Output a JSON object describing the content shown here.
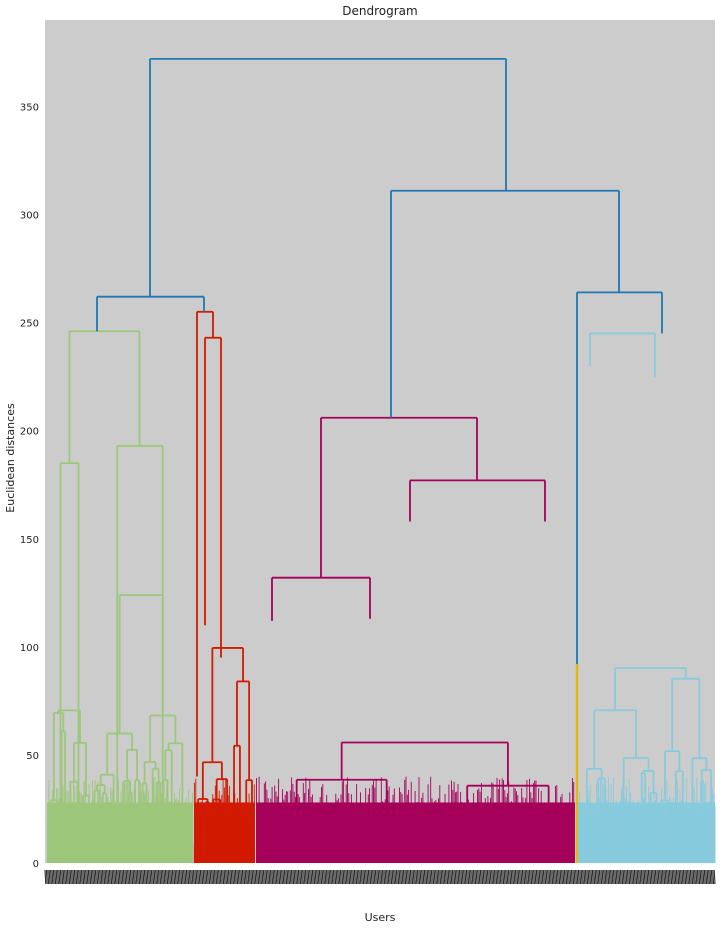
{
  "chart_data": {
    "type": "dendrogram",
    "title": "Dendrogram",
    "xlabel": "Users",
    "ylabel": "Euclidean distances",
    "ylim": [
      0,
      390
    ],
    "yticks": [
      0,
      50,
      100,
      150,
      200,
      250,
      300,
      350
    ],
    "grid": false,
    "background": "#cccccc",
    "colors": {
      "root": "#1f77b4",
      "green": "#9dc77a",
      "red": "#d11a00",
      "magenta": "#a5005a",
      "yellow": "#e3b90a",
      "cyan": "#87cbdd"
    },
    "merges": [
      {
        "id": "root",
        "height": 372,
        "children": [
          "left",
          "right"
        ]
      },
      {
        "id": "left",
        "height": 262,
        "children": [
          "green",
          "red"
        ]
      },
      {
        "id": "right",
        "height": 311,
        "children": [
          "magenta",
          "cyan_yellow"
        ]
      },
      {
        "id": "green",
        "height": 246,
        "children": [
          "g1",
          "g2"
        ]
      },
      {
        "id": "g1",
        "height": 185
      },
      {
        "id": "g2",
        "height": 193
      },
      {
        "id": "red",
        "height": 255,
        "children": [
          "r1",
          "r2"
        ]
      },
      {
        "id": "r2",
        "height": 243
      },
      {
        "id": "magenta",
        "height": 206,
        "children": [
          "m1",
          "m2"
        ]
      },
      {
        "id": "m1",
        "height": 132
      },
      {
        "id": "m2",
        "height": 177
      },
      {
        "id": "cyan_yellow",
        "height": 264,
        "children": [
          "yellow",
          "cyan"
        ]
      },
      {
        "id": "yellow",
        "height": 92
      },
      {
        "id": "cyan",
        "height": 245
      }
    ]
  }
}
